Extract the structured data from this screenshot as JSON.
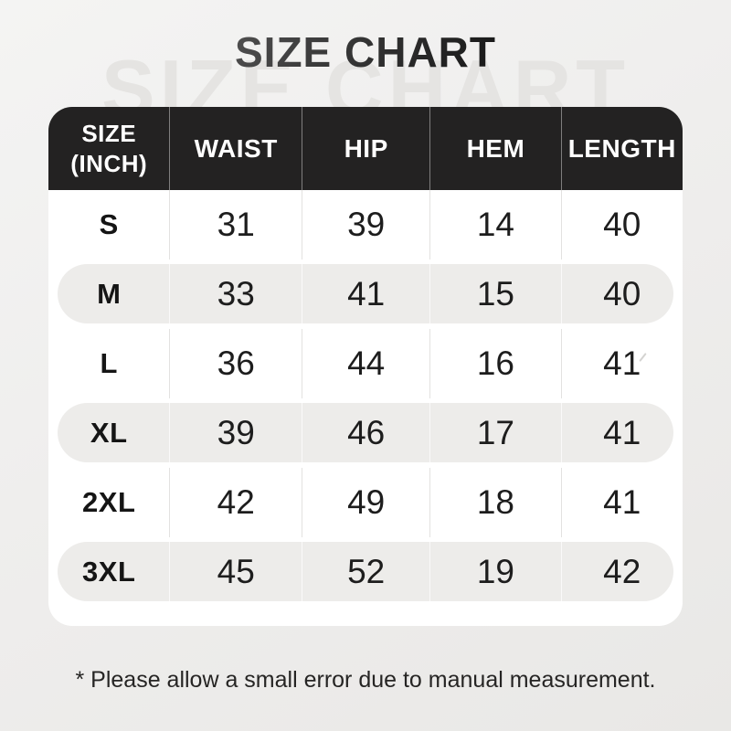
{
  "page": {
    "title": "SIZE CHART",
    "watermark": "SIZE CHART",
    "footnote": "* Please allow a small error due to manual measurement."
  },
  "table": {
    "header": {
      "size_label_line1": "SIZE",
      "size_label_line2": "(INCH)",
      "columns": [
        "WAIST",
        "HIP",
        "HEM",
        "LENGTH"
      ]
    },
    "rows": [
      {
        "size": "S",
        "waist": "31",
        "hip": "39",
        "hem": "14",
        "length": "40"
      },
      {
        "size": "M",
        "waist": "33",
        "hip": "41",
        "hem": "15",
        "length": "40"
      },
      {
        "size": "L",
        "waist": "36",
        "hip": "44",
        "hem": "16",
        "length": "41"
      },
      {
        "size": "XL",
        "waist": "39",
        "hip": "46",
        "hem": "17",
        "length": "41"
      },
      {
        "size": "2XL",
        "waist": "42",
        "hip": "49",
        "hem": "18",
        "length": "41"
      },
      {
        "size": "3XL",
        "waist": "45",
        "hip": "52",
        "hem": "19",
        "length": "42"
      }
    ]
  },
  "chart_data": {
    "type": "table",
    "title": "SIZE CHART",
    "unit": "inch",
    "columns": [
      "SIZE (INCH)",
      "WAIST",
      "HIP",
      "HEM",
      "LENGTH"
    ],
    "categories": [
      "S",
      "M",
      "L",
      "XL",
      "2XL",
      "3XL"
    ],
    "series": [
      {
        "name": "WAIST",
        "values": [
          31,
          33,
          36,
          39,
          42,
          45
        ]
      },
      {
        "name": "HIP",
        "values": [
          39,
          41,
          44,
          46,
          49,
          52
        ]
      },
      {
        "name": "HEM",
        "values": [
          14,
          15,
          16,
          17,
          18,
          19
        ]
      },
      {
        "name": "LENGTH",
        "values": [
          40,
          40,
          41,
          41,
          41,
          42
        ]
      }
    ],
    "annotations": [
      "* Please allow a small error due to manual measurement."
    ]
  },
  "colors": {
    "header_bg": "#232222",
    "header_text": "#ffffff",
    "row_stripe": "#edecea",
    "table_bg": "#ffffff",
    "page_bg": "#efeeed",
    "text_dark": "#1d1d1d",
    "watermark": "#e5e4e2"
  }
}
